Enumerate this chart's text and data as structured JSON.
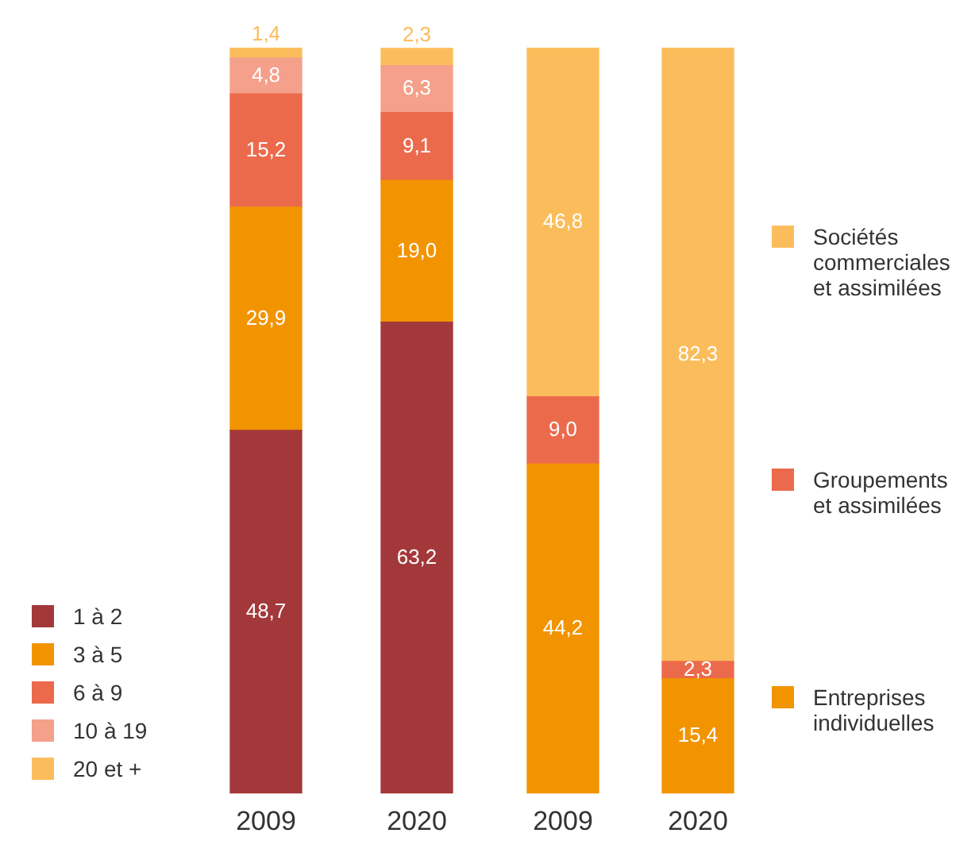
{
  "chart_data": [
    {
      "type": "bar",
      "stacked": true,
      "legend": "left",
      "grid": false,
      "categories": [
        "2009",
        "2020"
      ],
      "series": [
        {
          "name": "1 à 2",
          "color": "#a3383a",
          "values": [
            48.7,
            63.2
          ],
          "value_labels": [
            "48,7",
            "63,2"
          ]
        },
        {
          "name": "3 à 5",
          "color": "#f29400",
          "values": [
            29.9,
            19.0
          ],
          "value_labels": [
            "29,9",
            "19,0"
          ]
        },
        {
          "name": "6 à 9",
          "color": "#ec6a4c",
          "values": [
            15.2,
            9.1
          ],
          "value_labels": [
            "15,2",
            "9,1"
          ]
        },
        {
          "name": "10 à 19",
          "color": "#f4a08a",
          "values": [
            4.8,
            6.3
          ],
          "value_labels": [
            "4,8",
            "6,3"
          ]
        },
        {
          "name": "20 et +",
          "color": "#fbbd5c",
          "values": [
            1.4,
            2.3
          ],
          "value_labels": [
            "1,4",
            "2,3"
          ]
        }
      ]
    },
    {
      "type": "bar",
      "stacked": true,
      "legend": "right",
      "grid": false,
      "categories": [
        "2009",
        "2020"
      ],
      "series": [
        {
          "name": "Entreprises individuelles",
          "color": "#f29400",
          "values": [
            44.2,
            15.4
          ],
          "value_labels": [
            "44,2",
            "15,4"
          ]
        },
        {
          "name": "Groupements et assimilées",
          "color": "#ec6a4c",
          "values": [
            9.0,
            2.3
          ],
          "value_labels": [
            "9,0",
            "2,3"
          ]
        },
        {
          "name": "Sociétés commerciales et assimilées",
          "color": "#fbbd5c",
          "values": [
            46.8,
            82.3
          ],
          "value_labels": [
            "46,8",
            "82,3"
          ]
        }
      ]
    }
  ]
}
